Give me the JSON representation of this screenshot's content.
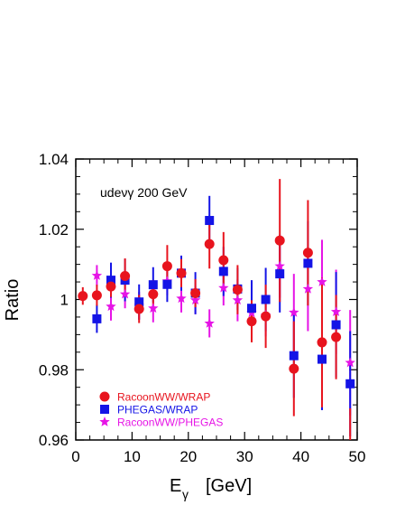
{
  "chart_data": {
    "type": "scatter",
    "xlabel": "E",
    "xlabel_sub": "γ",
    "xlabel_unit": "[GeV]",
    "ylabel": "Ratio",
    "annotation": "udeνγ  200 GeV",
    "xlim": [
      0,
      50
    ],
    "ylim": [
      0.96,
      1.04
    ],
    "xticks": [
      0,
      10,
      20,
      30,
      40,
      50
    ],
    "xtick_labels": [
      "0",
      "10",
      "20",
      "30",
      "40",
      "50"
    ],
    "yticks": [
      0.96,
      0.98,
      1.0,
      1.02,
      1.04
    ],
    "ytick_labels": [
      "0.96",
      "0.98",
      "1",
      "1.02",
      "1.04"
    ],
    "grid": false,
    "legend_position": "bottom-left",
    "series": [
      {
        "name": "RacoonWW/WRAP",
        "marker": "circle",
        "color": "#e8141e",
        "points": [
          {
            "x": 1.25,
            "y": 1.001,
            "err": 0.0025
          },
          {
            "x": 3.75,
            "y": 1.0012,
            "err": 0.003
          },
          {
            "x": 6.25,
            "y": 1.0037,
            "err": 0.003
          },
          {
            "x": 8.75,
            "y": 1.0067,
            "err": 0.005
          },
          {
            "x": 11.25,
            "y": 0.9973,
            "err": 0.004
          },
          {
            "x": 13.75,
            "y": 1.0015,
            "err": 0.004
          },
          {
            "x": 16.25,
            "y": 1.0095,
            "err": 0.006
          },
          {
            "x": 18.75,
            "y": 1.0075,
            "err": 0.004
          },
          {
            "x": 21.25,
            "y": 1.0018,
            "err": 0.004
          },
          {
            "x": 23.75,
            "y": 1.0158,
            "err": 0.007
          },
          {
            "x": 26.25,
            "y": 1.0112,
            "err": 0.008
          },
          {
            "x": 28.75,
            "y": 1.0028,
            "err": 0.007
          },
          {
            "x": 31.25,
            "y": 0.9938,
            "err": 0.006
          },
          {
            "x": 33.75,
            "y": 0.9952,
            "err": 0.009
          },
          {
            "x": 36.25,
            "y": 1.0168,
            "err": 0.0175
          },
          {
            "x": 38.75,
            "y": 0.9803,
            "err": 0.0135
          },
          {
            "x": 41.25,
            "y": 1.0133,
            "err": 0.015
          },
          {
            "x": 43.75,
            "y": 0.9878,
            "err": 0.0185
          },
          {
            "x": 46.25,
            "y": 0.9893,
            "err": 0.012
          },
          {
            "x": 48.75,
            "y": 0.956,
            "err": 0.013
          }
        ]
      },
      {
        "name": "PHEGAS/WRAP",
        "marker": "square",
        "color": "#1414e6",
        "points": [
          {
            "x": 3.75,
            "y": 0.9945,
            "err": 0.004
          },
          {
            "x": 6.25,
            "y": 1.0055,
            "err": 0.005
          },
          {
            "x": 8.75,
            "y": 1.0055,
            "err": 0.006
          },
          {
            "x": 11.25,
            "y": 0.9993,
            "err": 0.005
          },
          {
            "x": 13.75,
            "y": 1.0042,
            "err": 0.005
          },
          {
            "x": 16.25,
            "y": 1.0043,
            "err": 0.005
          },
          {
            "x": 18.75,
            "y": 1.0075,
            "err": 0.005
          },
          {
            "x": 21.25,
            "y": 1.0018,
            "err": 0.006
          },
          {
            "x": 23.75,
            "y": 1.0225,
            "err": 0.007
          },
          {
            "x": 26.25,
            "y": 1.008,
            "err": 0.007
          },
          {
            "x": 28.75,
            "y": 1.003,
            "err": 0.006
          },
          {
            "x": 31.25,
            "y": 0.9975,
            "err": 0.008
          },
          {
            "x": 33.75,
            "y": 1.0,
            "err": 0.009
          },
          {
            "x": 36.25,
            "y": 1.0073,
            "err": 0.011
          },
          {
            "x": 38.75,
            "y": 0.984,
            "err": 0.012
          },
          {
            "x": 41.25,
            "y": 1.0103,
            "err": 0.012
          },
          {
            "x": 43.75,
            "y": 0.983,
            "err": 0.0145
          },
          {
            "x": 46.25,
            "y": 0.9928,
            "err": 0.015
          },
          {
            "x": 48.75,
            "y": 0.976,
            "err": 0.015
          }
        ]
      },
      {
        "name": "RacoonWW/PHEGAS",
        "marker": "star",
        "color": "#e614e6",
        "points": [
          {
            "x": 3.75,
            "y": 1.0068,
            "err": 0.003
          },
          {
            "x": 6.25,
            "y": 0.998,
            "err": 0.004
          },
          {
            "x": 8.75,
            "y": 1.0015,
            "err": 0.004
          },
          {
            "x": 11.25,
            "y": 0.9982,
            "err": 0.004
          },
          {
            "x": 13.75,
            "y": 0.9975,
            "err": 0.004
          },
          {
            "x": 16.25,
            "y": 1.0052,
            "err": 0.004
          },
          {
            "x": 18.75,
            "y": 1.0003,
            "err": 0.004
          },
          {
            "x": 21.25,
            "y": 0.9998,
            "err": 0.004
          },
          {
            "x": 23.75,
            "y": 0.9932,
            "err": 0.004
          },
          {
            "x": 26.25,
            "y": 1.0033,
            "err": 0.005
          },
          {
            "x": 28.75,
            "y": 0.9998,
            "err": 0.006
          },
          {
            "x": 31.25,
            "y": 0.9962,
            "err": 0.006
          },
          {
            "x": 33.75,
            "y": 0.9955,
            "err": 0.006
          },
          {
            "x": 36.25,
            "y": 1.0095,
            "err": 0.009
          },
          {
            "x": 38.75,
            "y": 0.9963,
            "err": 0.011
          },
          {
            "x": 41.25,
            "y": 1.003,
            "err": 0.012
          },
          {
            "x": 43.75,
            "y": 1.005,
            "err": 0.012
          },
          {
            "x": 46.25,
            "y": 0.9965,
            "err": 0.012
          },
          {
            "x": 48.75,
            "y": 0.982,
            "err": 0.015
          }
        ]
      }
    ]
  }
}
